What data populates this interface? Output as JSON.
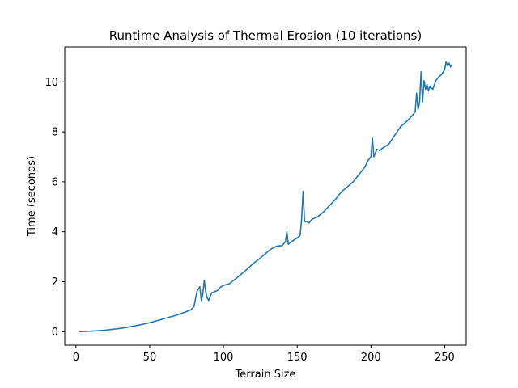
{
  "chart_data": {
    "type": "line",
    "title": "Runtime Analysis of Thermal Erosion (10 iterations)",
    "xlabel": "Terrain Size",
    "ylabel": "Time (seconds)",
    "xlim": [
      -7.6,
      264.6
    ],
    "ylim": [
      -0.54,
      11.4
    ],
    "xticks": [
      0,
      50,
      100,
      150,
      200,
      250
    ],
    "yticks": [
      0,
      2,
      4,
      6,
      8,
      10
    ],
    "grid": false,
    "legend": "none",
    "series": [
      {
        "color": "#1f77b4",
        "x": [
          2,
          10,
          20,
          30,
          40,
          48,
          52,
          58,
          62,
          66,
          70,
          74,
          78,
          80,
          82,
          84,
          85,
          86,
          87,
          88,
          89,
          90,
          92,
          94,
          96,
          98,
          100,
          104,
          108,
          112,
          116,
          120,
          124,
          128,
          132,
          136,
          140,
          142,
          143,
          144,
          145,
          146,
          148,
          150,
          152,
          153,
          154,
          155,
          156,
          158,
          160,
          164,
          168,
          172,
          176,
          180,
          184,
          188,
          192,
          196,
          198,
          200,
          201,
          202,
          203,
          204,
          206,
          208,
          212,
          216,
          220,
          224,
          228,
          230,
          231,
          232,
          233,
          234,
          235,
          236,
          237,
          238,
          239,
          240,
          242,
          244,
          246,
          248,
          250,
          251,
          252,
          253,
          254,
          255
        ],
        "values": [
          0.0,
          0.02,
          0.06,
          0.13,
          0.23,
          0.33,
          0.39,
          0.49,
          0.56,
          0.62,
          0.7,
          0.78,
          0.88,
          1.0,
          1.6,
          1.8,
          1.25,
          1.5,
          2.05,
          1.6,
          1.35,
          1.25,
          1.55,
          1.6,
          1.65,
          1.78,
          1.85,
          1.92,
          2.1,
          2.3,
          2.5,
          2.72,
          2.9,
          3.1,
          3.3,
          3.42,
          3.45,
          3.6,
          4.0,
          3.5,
          3.55,
          3.6,
          3.68,
          3.75,
          3.85,
          4.5,
          5.62,
          4.4,
          4.42,
          4.35,
          4.5,
          4.6,
          4.8,
          5.05,
          5.3,
          5.6,
          5.8,
          6.0,
          6.3,
          6.6,
          6.85,
          7.0,
          7.75,
          7.0,
          7.15,
          7.3,
          7.25,
          7.35,
          7.5,
          7.85,
          8.2,
          8.4,
          8.65,
          8.8,
          9.55,
          8.9,
          9.2,
          10.4,
          9.2,
          10.05,
          9.7,
          9.9,
          9.65,
          9.8,
          9.7,
          10.05,
          10.2,
          10.3,
          10.5,
          10.8,
          10.65,
          10.75,
          10.6,
          10.7
        ]
      }
    ]
  }
}
